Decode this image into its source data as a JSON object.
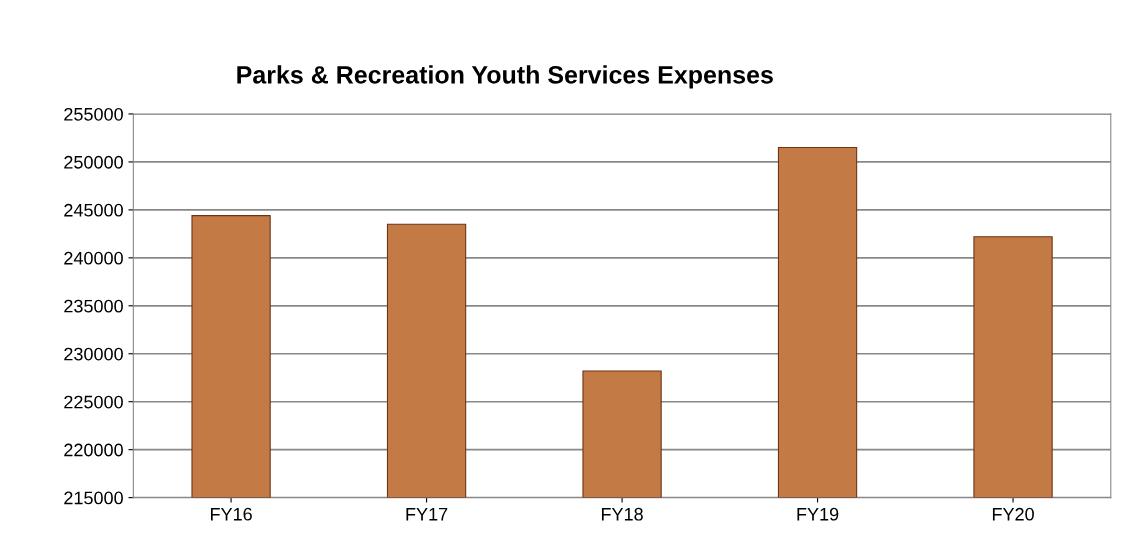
{
  "chart_data": {
    "type": "bar",
    "title": "Parks & Recreation Youth Services Expenses",
    "categories": [
      "FY16",
      "FY17",
      "FY18",
      "FY19",
      "FY20"
    ],
    "values": [
      244400,
      243500,
      228200,
      251500,
      242200
    ],
    "color": "#c47a45",
    "ylim": [
      215000,
      255000
    ],
    "yticks": [
      215000,
      220000,
      225000,
      230000,
      235000,
      240000,
      245000,
      250000,
      255000
    ],
    "grid": "y",
    "legend": false
  }
}
